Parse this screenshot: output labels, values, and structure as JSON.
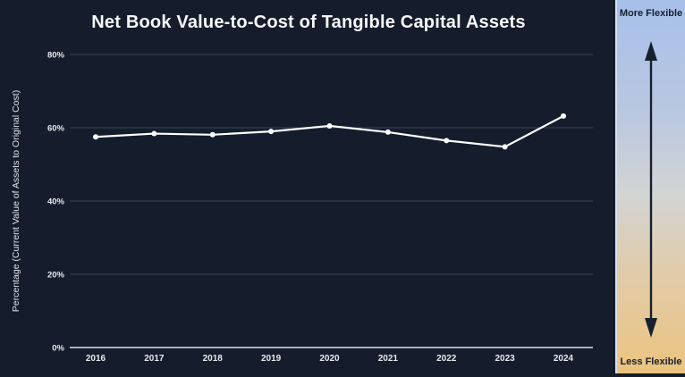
{
  "window": {
    "background_color": "#151d2c"
  },
  "chart_data": {
    "type": "line",
    "title": "Net Book Value-to-Cost of Tangible Capital Assets",
    "categories": [
      "2016",
      "2017",
      "2018",
      "2019",
      "2020",
      "2021",
      "2022",
      "2023",
      "2024"
    ],
    "series": [
      {
        "name": "Net Book Value-to-Cost of Tangible Capital Assets",
        "values": [
          57.5,
          58.4,
          58.1,
          59.0,
          60.5,
          58.8,
          56.5,
          54.8,
          63.2
        ]
      }
    ],
    "xlabel": "",
    "ylabel": "Percentage (Current Value of Assets to Original Cost)",
    "ylim": [
      0,
      80
    ],
    "yticks": [
      {
        "value": 0,
        "label": "0%"
      },
      {
        "value": 20,
        "label": "20%"
      },
      {
        "value": 40,
        "label": "40%"
      },
      {
        "value": 60,
        "label": "60%"
      },
      {
        "value": 80,
        "label": "80%"
      }
    ],
    "grid": true,
    "legend": "none",
    "line_color": "#ffffff",
    "marker_color": "#ffffff",
    "grid_color": "#3a4254",
    "axis_line_color": "#a9b0bd",
    "tick_label_color": "#e6e9ee",
    "title_color": "#f7f8fa"
  },
  "flexibility_scale": {
    "top_label": "More Flexible",
    "bottom_label": "Less Flexible",
    "gradient_top_color": "#a7c0ea",
    "gradient_bottom_color": "#ebc480",
    "arrow_color": "#17202f",
    "text_color": "#17202f"
  }
}
